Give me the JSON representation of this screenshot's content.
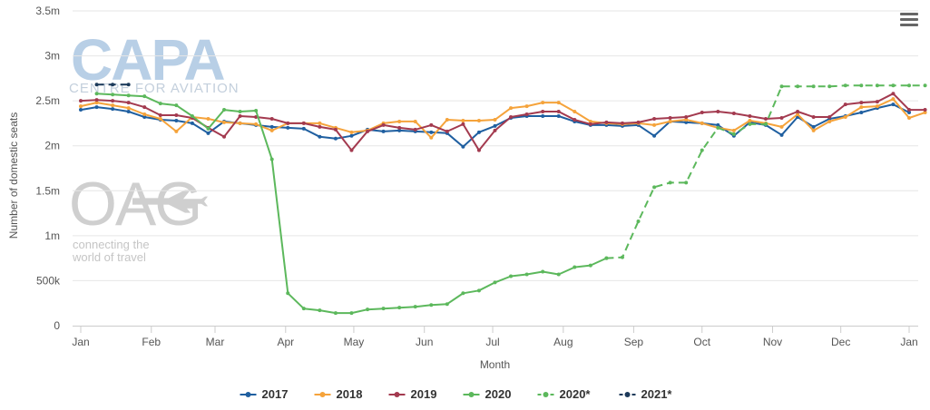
{
  "chart_data": {
    "type": "line",
    "title": "",
    "xlabel": "Month",
    "ylabel": "Number of domestic seats",
    "x_unit": "week of year",
    "x_range": [
      1,
      53
    ],
    "x_ticks": [
      {
        "label": "Jan",
        "week": 1
      },
      {
        "label": "Feb",
        "week": 5.43
      },
      {
        "label": "Mar",
        "week": 9.43
      },
      {
        "label": "Apr",
        "week": 13.86
      },
      {
        "label": "May",
        "week": 18.14
      },
      {
        "label": "Jun",
        "week": 22.57
      },
      {
        "label": "Jul",
        "week": 26.86
      },
      {
        "label": "Aug",
        "week": 31.29
      },
      {
        "label": "Sep",
        "week": 35.71
      },
      {
        "label": "Oct",
        "week": 40
      },
      {
        "label": "Nov",
        "week": 44.43
      },
      {
        "label": "Dec",
        "week": 48.71
      },
      {
        "label": "Jan",
        "week": 53
      }
    ],
    "y_ticks": [
      {
        "label": "0",
        "value": 0
      },
      {
        "label": "500k",
        "value": 500000
      },
      {
        "label": "1m",
        "value": 1000000
      },
      {
        "label": "1.5m",
        "value": 1500000
      },
      {
        "label": "2m",
        "value": 2000000
      },
      {
        "label": "2.5m",
        "value": 2500000
      },
      {
        "label": "3m",
        "value": 3000000
      },
      {
        "label": "3.5m",
        "value": 3500000
      }
    ],
    "ylim": [
      0,
      3500000
    ],
    "grid": "horizontal",
    "legend_position": "bottom",
    "series": [
      {
        "name": "2017",
        "color": "#1f5fa0",
        "dashed": false,
        "x_start": 1,
        "values": [
          2400000,
          2430000,
          2410000,
          2380000,
          2320000,
          2290000,
          2280000,
          2250000,
          2140000,
          2270000,
          2250000,
          2230000,
          2210000,
          2200000,
          2190000,
          2100000,
          2080000,
          2110000,
          2180000,
          2160000,
          2170000,
          2160000,
          2150000,
          2140000,
          1990000,
          2150000,
          2220000,
          2310000,
          2330000,
          2330000,
          2330000,
          2270000,
          2230000,
          2230000,
          2220000,
          2230000,
          2110000,
          2270000,
          2260000,
          2250000,
          2230000,
          2110000,
          2260000,
          2230000,
          2120000,
          2320000,
          2210000,
          2300000,
          2330000,
          2370000,
          2420000,
          2460000,
          2370000
        ]
      },
      {
        "name": "2018",
        "color": "#f5a33b",
        "dashed": false,
        "x_start": 1,
        "values": [
          2440000,
          2480000,
          2450000,
          2420000,
          2350000,
          2300000,
          2160000,
          2320000,
          2300000,
          2260000,
          2250000,
          2240000,
          2170000,
          2250000,
          2250000,
          2250000,
          2200000,
          2150000,
          2170000,
          2250000,
          2270000,
          2270000,
          2090000,
          2290000,
          2280000,
          2280000,
          2290000,
          2420000,
          2440000,
          2480000,
          2480000,
          2380000,
          2270000,
          2250000,
          2240000,
          2250000,
          2230000,
          2270000,
          2290000,
          2250000,
          2200000,
          2170000,
          2280000,
          2250000,
          2210000,
          2350000,
          2170000,
          2270000,
          2320000,
          2430000,
          2440000,
          2520000,
          2310000,
          2370000
        ]
      },
      {
        "name": "2019",
        "color": "#a33a4f",
        "dashed": false,
        "x_start": 1,
        "values": [
          2500000,
          2510000,
          2500000,
          2480000,
          2430000,
          2340000,
          2340000,
          2310000,
          2200000,
          2100000,
          2330000,
          2320000,
          2300000,
          2250000,
          2250000,
          2210000,
          2180000,
          1950000,
          2160000,
          2230000,
          2200000,
          2180000,
          2230000,
          2160000,
          2240000,
          1950000,
          2170000,
          2320000,
          2350000,
          2380000,
          2380000,
          2290000,
          2240000,
          2260000,
          2250000,
          2260000,
          2300000,
          2310000,
          2320000,
          2370000,
          2380000,
          2360000,
          2330000,
          2300000,
          2310000,
          2380000,
          2320000,
          2320000,
          2460000,
          2480000,
          2490000,
          2580000,
          2400000,
          2400000
        ]
      },
      {
        "name": "2020",
        "color": "#5cb85c",
        "dashed": false,
        "x_start": 1,
        "values": [
          null,
          2580000,
          2570000,
          2560000,
          2550000,
          2470000,
          2450000,
          2330000,
          2190000,
          2400000,
          2380000,
          2390000,
          1850000,
          360000,
          190000,
          170000,
          140000,
          140000,
          180000,
          190000,
          200000,
          210000,
          230000,
          240000,
          360000,
          390000,
          480000,
          550000,
          570000,
          600000,
          570000,
          650000,
          670000,
          750000
        ]
      },
      {
        "name": "2020*",
        "color": "#5cb85c",
        "dashed": true,
        "x_start": 1,
        "values": [
          null,
          null,
          null,
          null,
          null,
          null,
          null,
          null,
          null,
          null,
          null,
          null,
          null,
          null,
          null,
          null,
          null,
          null,
          null,
          null,
          null,
          null,
          null,
          null,
          null,
          null,
          null,
          null,
          null,
          null,
          null,
          null,
          null,
          750000,
          760000,
          1160000,
          1540000,
          1590000,
          1590000,
          1950000,
          2200000,
          2130000,
          2240000,
          2240000,
          2660000,
          2660000,
          2660000,
          2660000,
          2670000,
          2670000,
          2670000,
          2670000,
          2670000,
          2670000
        ]
      },
      {
        "name": "2021*",
        "color": "#1c3a5a",
        "dashed": true,
        "x_start": 1,
        "values": [
          null,
          2680000,
          2680000,
          2680000
        ]
      }
    ]
  },
  "watermarks": {
    "capa_logo": "CAPA",
    "capa_tagline": "CENTRE FOR AVIATION",
    "oag_logo": "OAG",
    "oag_tagline_1": "connecting the",
    "oag_tagline_2": "world of travel"
  },
  "icons": {
    "menu": "hamburger-menu-icon",
    "airplane": "airplane-icon"
  }
}
